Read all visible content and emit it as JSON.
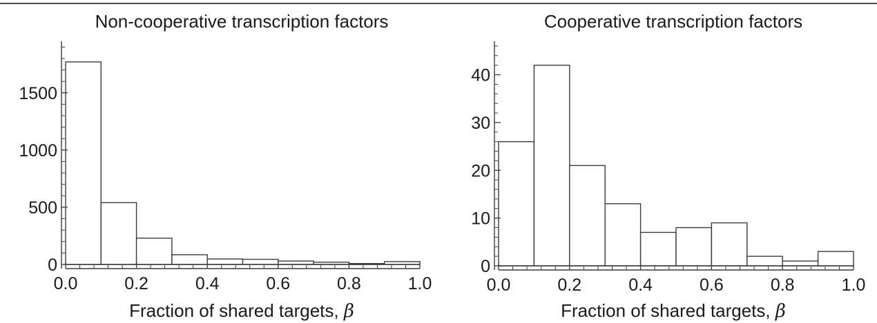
{
  "chart_data": [
    {
      "type": "bar",
      "title": "Non-cooperative transcription factors",
      "xlabel": "Fraction of shared targets, ",
      "xlabel_symbol": "β",
      "ylabel": "",
      "bin_edges": [
        0.0,
        0.1,
        0.2,
        0.3,
        0.4,
        0.5,
        0.6,
        0.7,
        0.8,
        0.9,
        1.0
      ],
      "values": [
        1770,
        540,
        230,
        85,
        48,
        45,
        30,
        20,
        8,
        25
      ],
      "xlim": [
        0.0,
        1.0
      ],
      "ylim": [
        0,
        1950
      ],
      "xticks": [
        "0.0",
        "0.2",
        "0.4",
        "0.6",
        "0.8",
        "1.0"
      ],
      "yticks": [
        "0",
        "500",
        "1000",
        "1500"
      ],
      "grid": false,
      "legend": "none"
    },
    {
      "type": "bar",
      "title": "Cooperative transcription factors",
      "xlabel": "Fraction of shared targets, ",
      "xlabel_symbol": "β",
      "ylabel": "",
      "bin_edges": [
        0.0,
        0.1,
        0.2,
        0.3,
        0.4,
        0.5,
        0.6,
        0.7,
        0.8,
        0.9,
        1.0
      ],
      "values": [
        26,
        42,
        21,
        13,
        7,
        8,
        9,
        2,
        1,
        3
      ],
      "xlim": [
        0.0,
        1.0
      ],
      "ylim": [
        0,
        47
      ],
      "xticks": [
        "0.0",
        "0.2",
        "0.4",
        "0.6",
        "0.8",
        "1.0"
      ],
      "yticks": [
        "0",
        "10",
        "20",
        "30",
        "40"
      ],
      "grid": false,
      "legend": "none"
    }
  ]
}
